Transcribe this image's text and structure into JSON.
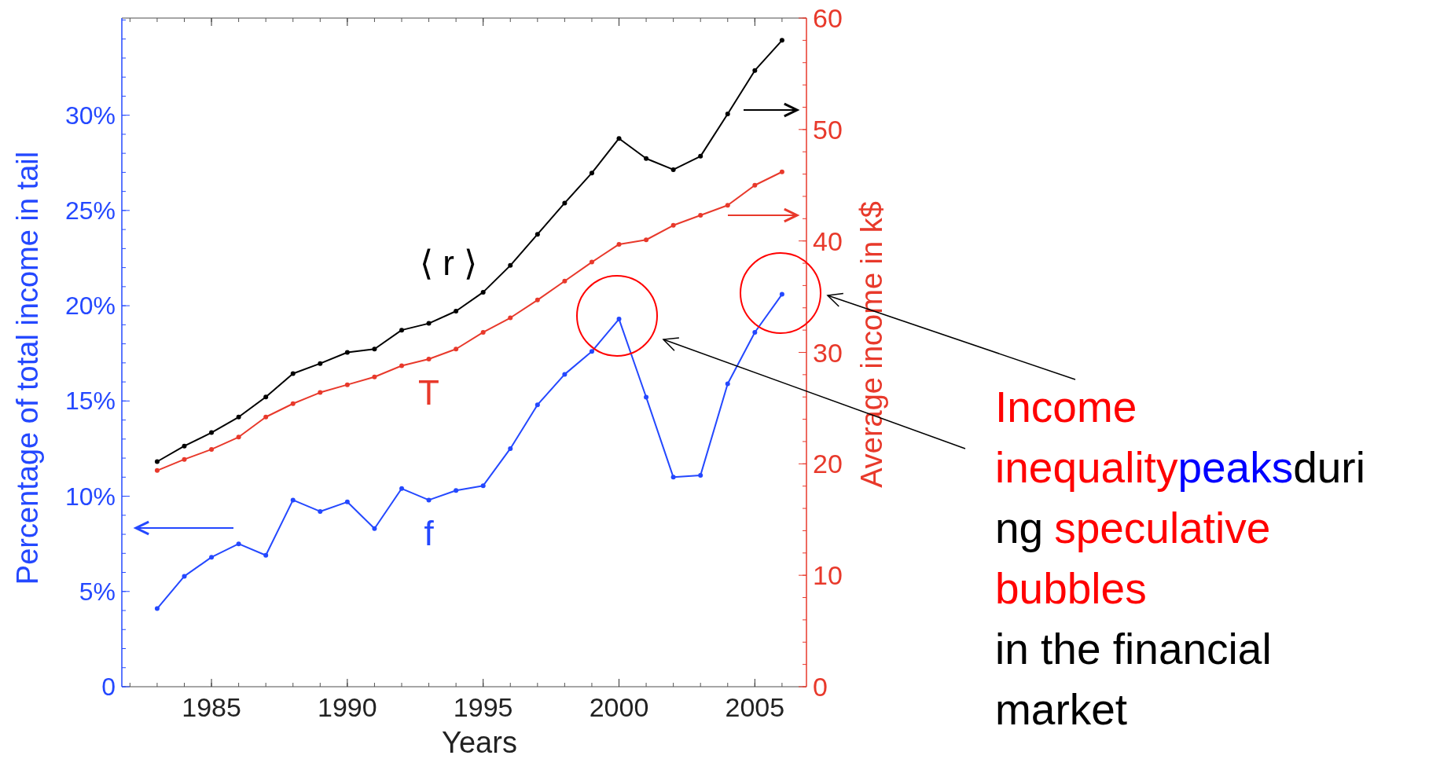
{
  "chart_data": {
    "type": "line",
    "xlabel": "Years",
    "ylabel": "Percentage of total income in tail",
    "y2label": "Average income in k$",
    "x": [
      1983,
      1984,
      1985,
      1986,
      1987,
      1988,
      1989,
      1990,
      1991,
      1992,
      1993,
      1994,
      1995,
      1996,
      1997,
      1998,
      1999,
      2000,
      2001,
      2002,
      2003,
      2004,
      2005,
      2006
    ],
    "series": [
      {
        "name": "⟨ r ⟩",
        "color": "#000000",
        "axis": "y2",
        "values": [
          20.2,
          21.6,
          22.8,
          24.2,
          26.0,
          28.1,
          29.0,
          30.0,
          30.3,
          32.0,
          32.6,
          33.7,
          35.4,
          37.8,
          40.6,
          43.4,
          46.1,
          49.2,
          47.4,
          46.4,
          47.6,
          51.4,
          55.3,
          58.0
        ]
      },
      {
        "name": "T",
        "color": "#e8392b",
        "axis": "y2",
        "values": [
          19.4,
          20.4,
          21.3,
          22.4,
          24.2,
          25.4,
          26.4,
          27.1,
          27.8,
          28.8,
          29.4,
          30.3,
          31.8,
          33.1,
          34.7,
          36.4,
          38.1,
          39.7,
          40.1,
          41.4,
          42.3,
          43.2,
          45.0,
          46.2
        ]
      },
      {
        "name": "f",
        "color": "#2448ff",
        "values": [
          4.1,
          5.8,
          6.8,
          7.5,
          6.9,
          9.8,
          9.2,
          9.7,
          8.3,
          10.4,
          9.8,
          10.3,
          10.55,
          12.5,
          14.8,
          16.4,
          17.6,
          19.3,
          15.2,
          11.0,
          11.1,
          15.9,
          18.6,
          20.6
        ]
      }
    ],
    "xlim": [
      1981.7,
      2006.9
    ],
    "xticks": [
      1985,
      1990,
      1995,
      2000,
      2005
    ],
    "ylim": [
      0,
      35.1
    ],
    "yticks": [
      0,
      {
        "value": 5,
        "label": "5%"
      },
      {
        "value": 10,
        "label": "10%"
      },
      {
        "value": 15,
        "label": "15%"
      },
      {
        "value": 20,
        "label": "20%"
      },
      {
        "value": 25,
        "label": "25%"
      },
      {
        "value": 30,
        "label": "30%"
      }
    ],
    "y2lim": [
      0,
      60
    ],
    "y2ticks": [
      0,
      10,
      20,
      30,
      40,
      50,
      60
    ],
    "marker": "circle",
    "grid": false,
    "annotations": [
      "Income",
      "inequality",
      "peaks",
      "duri",
      "ng",
      "speculative",
      "bubbles",
      "in the financial",
      "market"
    ]
  }
}
